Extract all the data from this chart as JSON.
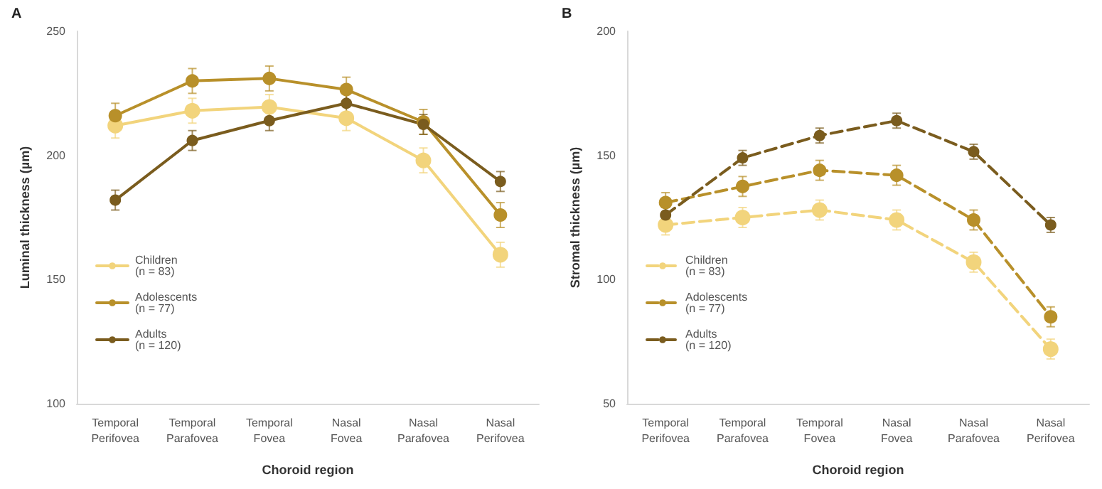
{
  "chart_data": [
    {
      "type": "line",
      "title": "A",
      "xlabel": "Choroid region",
      "ylabel": "Luminal thickness (µm)",
      "categories": [
        "Temporal\nPerifovea",
        "Temporal\nParafovea",
        "Temporal\nFovea",
        "Nasal\nFovea",
        "Nasal\nParafovea",
        "Nasal\nPerifovea"
      ],
      "series": [
        {
          "name": "Children\n(n = 83)",
          "color": "#f2d47c",
          "values": [
            212,
            218,
            219.5,
            215,
            198,
            160
          ],
          "errors": [
            5,
            5,
            5,
            5,
            5,
            5
          ]
        },
        {
          "name": "Adolescents\n(n = 77)",
          "color": "#b8902a",
          "values": [
            216,
            230,
            231,
            226.5,
            213.5,
            176
          ],
          "errors": [
            5,
            5,
            5,
            5,
            5,
            5
          ]
        },
        {
          "name": "Adults\n(n = 120)",
          "color": "#7a5c1e",
          "values": [
            182,
            206,
            214,
            221,
            212.5,
            189.5
          ],
          "errors": [
            4,
            4,
            4,
            4,
            4,
            4
          ]
        }
      ],
      "ylim": [
        100,
        250
      ],
      "yticks": [
        100,
        150,
        200,
        250
      ],
      "legend": "bottom left",
      "marker": "circle",
      "line_style": "solid"
    },
    {
      "type": "line",
      "title": "B",
      "xlabel": "Choroid region",
      "ylabel": "Stromal thickness (µm)",
      "categories": [
        "Temporal\nPerifovea",
        "Temporal\nParafovea",
        "Temporal\nFovea",
        "Nasal\nFovea",
        "Nasal\nParafovea",
        "Nasal\nPerifovea"
      ],
      "series": [
        {
          "name": "Children\n(n = 83)",
          "color": "#f2d47c",
          "values": [
            122,
            125,
            128,
            124,
            107,
            72
          ],
          "errors": [
            4,
            4,
            4,
            4,
            4,
            4
          ]
        },
        {
          "name": "Adolescents\n(n = 77)",
          "color": "#b8902a",
          "values": [
            131,
            137.5,
            144,
            142,
            124,
            85
          ],
          "errors": [
            4,
            4,
            4,
            4,
            4,
            4
          ]
        },
        {
          "name": "Adults\n(n = 120)",
          "color": "#7a5c1e",
          "values": [
            126,
            149,
            158,
            164,
            151.5,
            122
          ],
          "errors": [
            3,
            3,
            3,
            3,
            3,
            3
          ]
        }
      ],
      "ylim": [
        50,
        200
      ],
      "yticks": [
        50,
        100,
        150,
        200
      ],
      "legend": "bottom left",
      "marker": "circle",
      "line_style": "dashed"
    }
  ]
}
